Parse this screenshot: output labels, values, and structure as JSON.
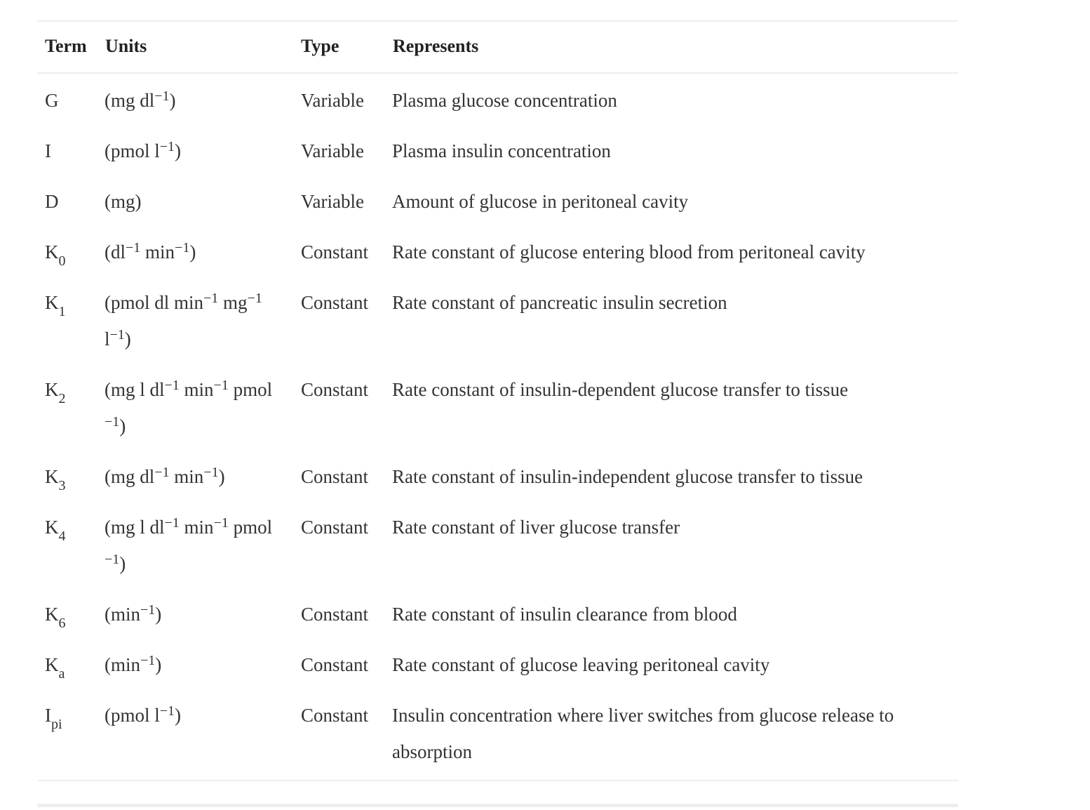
{
  "table": {
    "headers": {
      "term": "Term",
      "units": "Units",
      "type": "Type",
      "represents": "Represents"
    },
    "rows": [
      {
        "term": [
          {
            "t": "G"
          }
        ],
        "units": [
          {
            "t": "(mg dl"
          },
          {
            "sup": "−1"
          },
          {
            "t": ")"
          }
        ],
        "type": "Variable",
        "represents": "Plasma glucose concentration"
      },
      {
        "term": [
          {
            "t": "I"
          }
        ],
        "units": [
          {
            "t": "(pmol l"
          },
          {
            "sup": "−1"
          },
          {
            "t": ")"
          }
        ],
        "type": "Variable",
        "represents": "Plasma insulin concentration"
      },
      {
        "term": [
          {
            "t": "D"
          }
        ],
        "units": [
          {
            "t": "(mg)"
          }
        ],
        "type": "Variable",
        "represents": "Amount of glucose in peritoneal cavity"
      },
      {
        "term": [
          {
            "t": "K"
          },
          {
            "sub": "0"
          }
        ],
        "units": [
          {
            "t": "(dl"
          },
          {
            "sup": "−1"
          },
          {
            "t": " min"
          },
          {
            "sup": "−1"
          },
          {
            "t": ")"
          }
        ],
        "type": "Constant",
        "represents": "Rate constant of glucose entering blood from peritoneal cavity"
      },
      {
        "term": [
          {
            "t": "K"
          },
          {
            "sub": "1"
          }
        ],
        "units": [
          {
            "t": "(pmol dl min"
          },
          {
            "sup": "−1"
          },
          {
            "t": " mg"
          },
          {
            "sup": "−1"
          },
          {
            "t": " l"
          },
          {
            "sup": "−1"
          },
          {
            "t": ")"
          }
        ],
        "type": "Constant",
        "represents": "Rate constant of pancreatic insulin secretion"
      },
      {
        "term": [
          {
            "t": "K"
          },
          {
            "sub": "2"
          }
        ],
        "units": [
          {
            "t": "(mg l dl"
          },
          {
            "sup": "−1"
          },
          {
            "t": " min"
          },
          {
            "sup": "−1"
          },
          {
            "t": " pmol "
          },
          {
            "sup": "−1"
          },
          {
            "t": ")"
          }
        ],
        "type": "Constant",
        "represents": "Rate constant of insulin-dependent glucose transfer to tissue"
      },
      {
        "term": [
          {
            "t": "K"
          },
          {
            "sub": "3"
          }
        ],
        "units": [
          {
            "t": "(mg dl"
          },
          {
            "sup": "−1"
          },
          {
            "t": " min"
          },
          {
            "sup": "−1"
          },
          {
            "t": ")"
          }
        ],
        "type": "Constant",
        "represents": "Rate constant of insulin-independent glucose transfer to tissue"
      },
      {
        "term": [
          {
            "t": "K"
          },
          {
            "sub": "4"
          }
        ],
        "units": [
          {
            "t": "(mg l dl"
          },
          {
            "sup": "−1"
          },
          {
            "t": " min"
          },
          {
            "sup": "−1"
          },
          {
            "t": " pmol "
          },
          {
            "sup": "−1"
          },
          {
            "t": ")"
          }
        ],
        "type": "Constant",
        "represents": "Rate constant of liver glucose transfer"
      },
      {
        "term": [
          {
            "t": "K"
          },
          {
            "sub": "6"
          }
        ],
        "units": [
          {
            "t": "(min"
          },
          {
            "sup": "−1"
          },
          {
            "t": ")"
          }
        ],
        "type": "Constant",
        "represents": "Rate constant of insulin clearance from blood"
      },
      {
        "term": [
          {
            "t": "K"
          },
          {
            "sub": "a"
          }
        ],
        "units": [
          {
            "t": "(min"
          },
          {
            "sup": "−1"
          },
          {
            "t": ")"
          }
        ],
        "type": "Constant",
        "represents": "Rate constant of glucose leaving peritoneal cavity"
      },
      {
        "term": [
          {
            "t": "I"
          },
          {
            "sub": "pi"
          }
        ],
        "units": [
          {
            "t": "(pmol l"
          },
          {
            "sup": "−1"
          },
          {
            "t": ")"
          }
        ],
        "type": "Constant",
        "represents": "Insulin concentration where liver switches from glucose release to absorption"
      }
    ]
  }
}
